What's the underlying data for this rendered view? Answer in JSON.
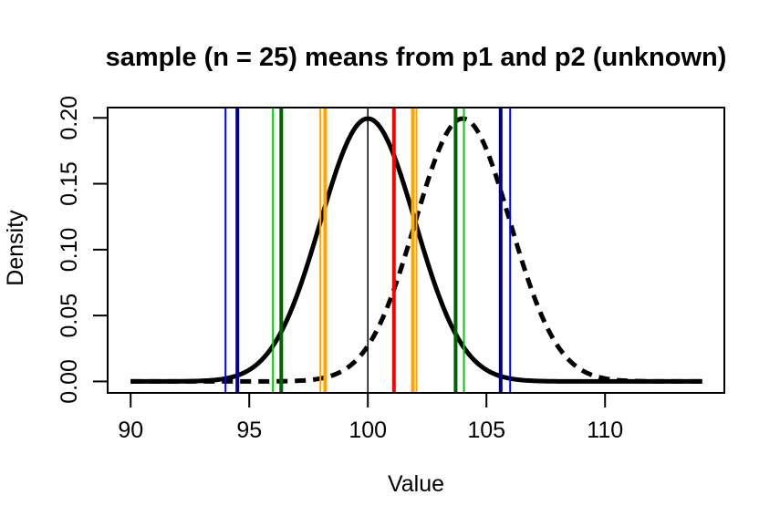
{
  "figure": {
    "background": "#FFFFFF",
    "axis_color": "#000000"
  },
  "chart_data": {
    "type": "line",
    "title": "sample (n = 25) means from p1 and p2 (unknown)",
    "xlabel": "Value",
    "ylabel": "Density",
    "x_ticks": [
      90,
      95,
      100,
      105,
      110
    ],
    "y_ticks": [
      {
        "value": 0.0,
        "label": "0.00"
      },
      {
        "value": 0.05,
        "label": "0.05"
      },
      {
        "value": 0.1,
        "label": "0.10"
      },
      {
        "value": 0.15,
        "label": "0.15"
      },
      {
        "value": 0.2,
        "label": "0.20"
      }
    ],
    "xlim": [
      89.03,
      115.03
    ],
    "ylim": [
      -0.0087,
      0.2078
    ],
    "grid": false,
    "legend": "none",
    "curves": [
      {
        "name": "p1-sample-means-density",
        "distribution": "normal",
        "mean": 100,
        "sd": 2,
        "peak_density": 0.1995,
        "x_start": 90,
        "x_end": 114.14,
        "line_style": "solid",
        "color": "#000000",
        "width": 5
      },
      {
        "name": "p2-sample-means-density",
        "distribution": "normal",
        "mean": 104,
        "sd": 2,
        "peak_density": 0.1995,
        "x_start": 90,
        "x_end": 114.14,
        "line_style": "dashed",
        "color": "#000000",
        "width": 5
      }
    ],
    "vertical_lines": [
      {
        "name": "reference-mean-line",
        "value": 100.0,
        "color": "#000000",
        "width": 1.5
      },
      {
        "name": "blue-thin-lower",
        "value": 94.0,
        "color": "#0000FF",
        "width": 2
      },
      {
        "name": "blue-thin-upper",
        "value": 106.0,
        "color": "#0000FF",
        "width": 2
      },
      {
        "name": "darkblue-thick-lower",
        "value": 94.5,
        "color": "#00008B",
        "width": 4
      },
      {
        "name": "darkblue-thick-upper",
        "value": 105.6,
        "color": "#00008B",
        "width": 4
      },
      {
        "name": "green-thin-lower",
        "value": 96.0,
        "color": "#00CC00",
        "width": 2
      },
      {
        "name": "green-thin-upper",
        "value": 104.05,
        "color": "#00CC00",
        "width": 2
      },
      {
        "name": "darkgreen-thick-lower",
        "value": 96.35,
        "color": "#006400",
        "width": 4
      },
      {
        "name": "darkgreen-thick-upper",
        "value": 103.7,
        "color": "#006400",
        "width": 4
      },
      {
        "name": "orange-thin-lower",
        "value": 98.0,
        "color": "#FFA500",
        "width": 2
      },
      {
        "name": "orange-thin-upper",
        "value": 102.05,
        "color": "#FFA500",
        "width": 2
      },
      {
        "name": "orange-thick-lower",
        "value": 98.2,
        "color": "#FFA500",
        "width": 4
      },
      {
        "name": "orange-thick-upper",
        "value": 101.9,
        "color": "#FFA500",
        "width": 4
      },
      {
        "name": "red-observed-mean-line",
        "value": 101.1,
        "color": "#FF0000",
        "width": 4
      }
    ]
  }
}
